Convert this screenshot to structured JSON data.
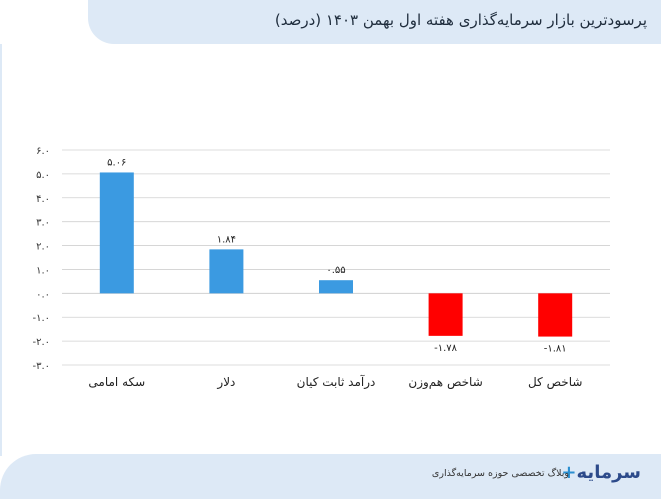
{
  "header": {
    "title": "پرسودترین بازار سرمایه‌گذاری هفته اول بهمن ۱۴۰۳ (درصد)"
  },
  "footer": {
    "text": "وبلاگ تخصصی حوزه سرمایه‌گذاری",
    "logo_text": "سرمایه",
    "logo_plus": "+"
  },
  "chart_data": {
    "type": "bar",
    "title": "پرسودترین بازار سرمایه‌گذاری هفته اول بهمن ۱۴۰۳ (درصد)",
    "categories": [
      "سکه امامی",
      "دلار",
      "درآمد ثابت کیان",
      "شاخص هم‌وزن",
      "شاخص کل"
    ],
    "values": [
      5.06,
      1.84,
      0.55,
      -1.78,
      -1.81
    ],
    "value_labels": [
      "۵.۰۶",
      "۱.۸۴",
      "۰.۵۵",
      "-۱.۷۸",
      "-۱.۸۱"
    ],
    "yticks": [
      6,
      5,
      4,
      3,
      2,
      1,
      0,
      -1,
      -2,
      -3
    ],
    "ytick_labels": [
      "۶.۰",
      "۵.۰",
      "۴.۰",
      "۳.۰",
      "۲.۰",
      "۱.۰",
      "۰.۰",
      "-۱.۰",
      "-۲.۰",
      "-۳.۰"
    ],
    "ylim": [
      -3,
      6
    ],
    "grid": true,
    "colors": {
      "positive": "#3b9ae1",
      "negative": "#ff0000",
      "grid": "#d0d0d0"
    }
  }
}
